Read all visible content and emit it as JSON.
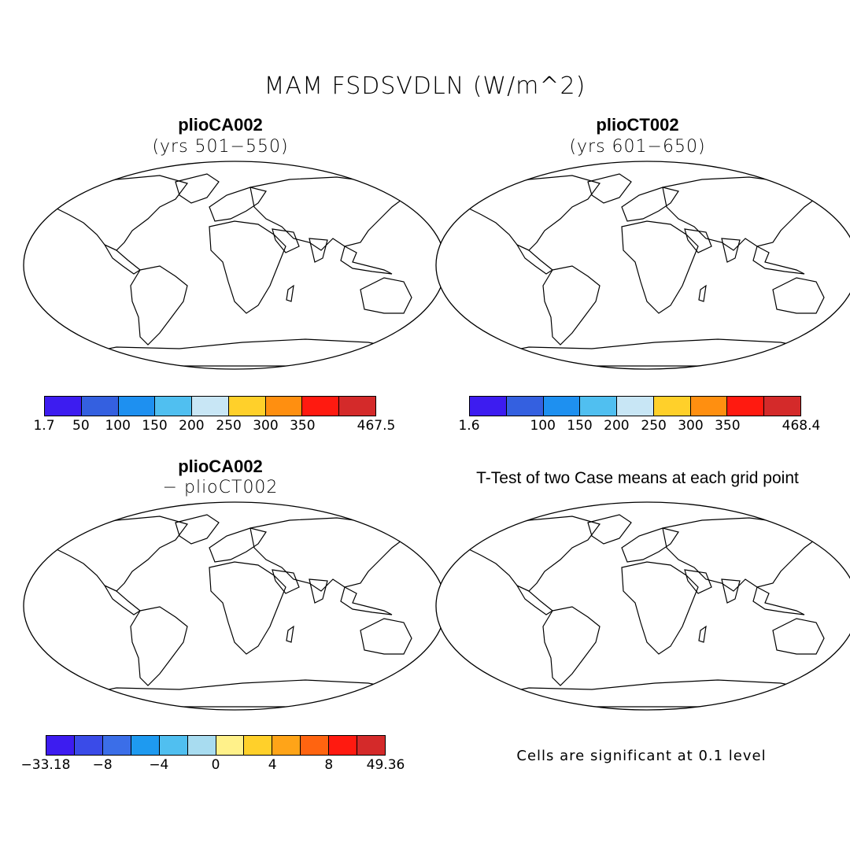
{
  "title": "MAM FSDSVDLN (W/m^2)",
  "panels": {
    "top_left": {
      "title": "plioCA002",
      "subtitle": "(yrs 501−550)"
    },
    "top_right": {
      "title": "plioCT002",
      "subtitle": "(yrs 601−650)"
    },
    "bottom_left": {
      "title": "plioCA002",
      "subtitle": "− plioCT002"
    },
    "bottom_right": {
      "title": "T-Test of two Case means at each grid point"
    }
  },
  "colorbars": {
    "top_left": {
      "colors": [
        "#3d1cf0",
        "#3460e0",
        "#1e90f0",
        "#50bff0",
        "#c8e6f5",
        "#ffd02a",
        "#ff8f10",
        "#ff1a10",
        "#d42a2a"
      ],
      "labels": [
        "1.7",
        "50",
        "100",
        "150",
        "200",
        "250",
        "300",
        "350",
        "467.5"
      ]
    },
    "top_right": {
      "colors": [
        "#3d1cf0",
        "#3460e0",
        "#1e90f0",
        "#50bff0",
        "#c8e6f5",
        "#ffd02a",
        "#ff8f10",
        "#ff1a10",
        "#d42a2a"
      ],
      "labels": [
        "1.6",
        "100",
        "150",
        "200",
        "250",
        "300",
        "350",
        "468.4"
      ]
    },
    "bottom": {
      "colors": [
        "#3d1cf0",
        "#3a4be8",
        "#3b6ee8",
        "#1e9af0",
        "#50bff0",
        "#a8dcf0",
        "#fff18a",
        "#ffd02a",
        "#ffa418",
        "#ff6410",
        "#ff1a10",
        "#d42a2a"
      ],
      "labels": [
        "−33.18",
        "−8",
        "−4",
        "0",
        "4",
        "8",
        "49.36"
      ]
    }
  },
  "note": "Cells are significant at 0.1 level"
}
